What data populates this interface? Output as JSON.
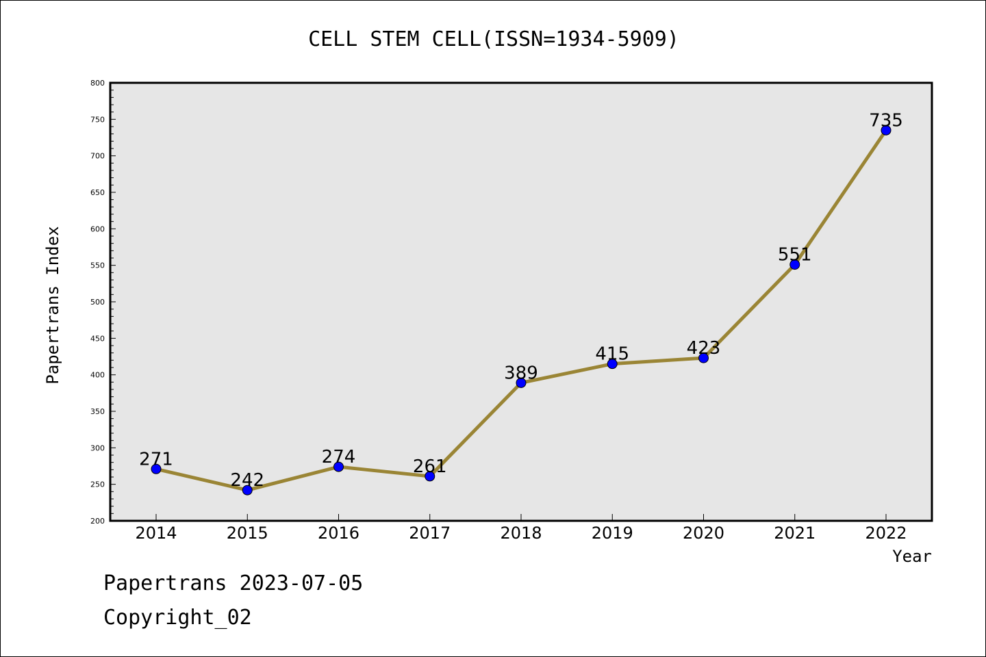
{
  "chart_data": {
    "type": "line",
    "title": "CELL STEM CELL(ISSN=1934-5909)",
    "xlabel": "Year",
    "ylabel": "Papertrans Index",
    "categories": [
      "2014",
      "2015",
      "2016",
      "2017",
      "2018",
      "2019",
      "2020",
      "2021",
      "2022"
    ],
    "series": [
      {
        "values": [
          271,
          242,
          274,
          261,
          389,
          415,
          423,
          551,
          735
        ]
      }
    ],
    "data_labels": [
      "271",
      "242",
      "274",
      "261",
      "389",
      "415",
      "423",
      "551",
      "735"
    ],
    "ylim": [
      200,
      800
    ],
    "yticks": [
      200,
      250,
      300,
      350,
      400,
      450,
      500,
      550,
      600,
      650,
      700,
      750,
      800
    ],
    "grid": false,
    "colors": {
      "plot_background": "#e6e6e6",
      "line": "#9a8535",
      "marker": "#0000ff"
    }
  },
  "footer": {
    "line1": "Papertrans 2023-07-05",
    "line2": "Copyright_02"
  }
}
